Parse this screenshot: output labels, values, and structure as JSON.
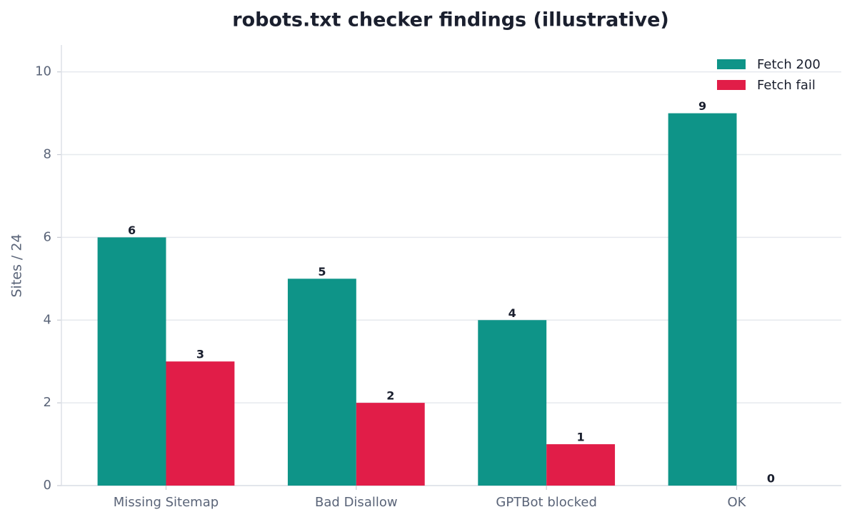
{
  "chart_data": {
    "type": "bar",
    "title": "robots.txt checker findings (illustrative)",
    "y_label": "Sites / 24",
    "categories": [
      "Missing Sitemap",
      "Bad Disallow",
      "GPTBot blocked",
      "OK"
    ],
    "series": [
      {
        "name": "Fetch 200",
        "color": "#0e9488",
        "values": [
          6,
          5,
          4,
          9
        ]
      },
      {
        "name": "Fetch fail",
        "color": "#e11d48",
        "values": [
          3,
          2,
          1,
          0
        ]
      }
    ],
    "ylim": [
      0,
      10.65
    ],
    "yticks": [
      0,
      2,
      4,
      6,
      8,
      10
    ],
    "grid": true,
    "legend": "upper right"
  }
}
